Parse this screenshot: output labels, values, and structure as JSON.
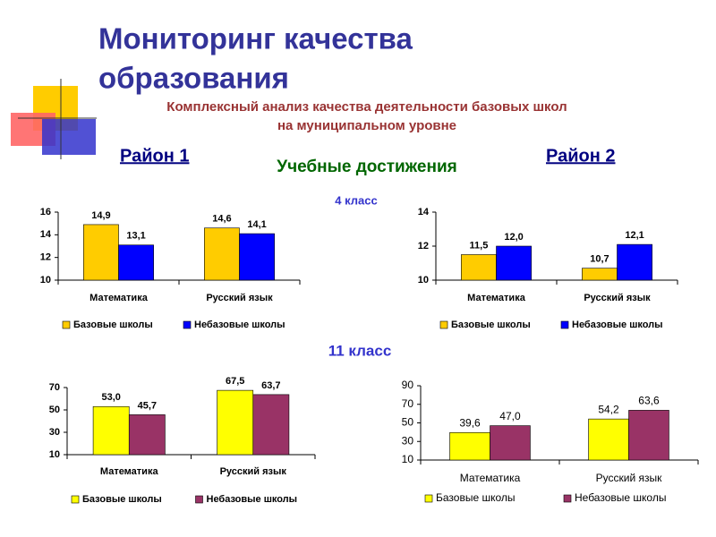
{
  "title": [
    "Мониторинг качества",
    "образования"
  ],
  "subtitle": [
    "Комплексный анализ качества деятельности базовых школ",
    "на муниципальном уровне"
  ],
  "district_1": "Район 1",
  "district_2": "Район 2",
  "heading": "Учебные достижения",
  "grade_4": "4 класс",
  "grade_11": "11 класс",
  "chart_data": [
    {
      "type": "bar",
      "categories": [
        "Математика",
        "Русский язык"
      ],
      "ylim": [
        10,
        16
      ],
      "yticks": [
        10,
        12,
        14,
        16
      ],
      "grid": false,
      "legend": "bottom",
      "series": [
        {
          "name": "Базовые школы",
          "color": "#ffcc00",
          "values": [
            14.9,
            14.6
          ],
          "value_labels": [
            "14,9",
            "14,6"
          ]
        },
        {
          "name": "Небазовые школы",
          "color": "#0000ff",
          "values": [
            13.1,
            14.1
          ],
          "value_labels": [
            "13,1",
            "14,1"
          ]
        }
      ]
    },
    {
      "type": "bar",
      "categories": [
        "Математика",
        "Русский язык"
      ],
      "ylim": [
        10,
        14
      ],
      "yticks": [
        10,
        12,
        14
      ],
      "grid": false,
      "legend": "bottom",
      "series": [
        {
          "name": "Базовые школы",
          "color": "#ffcc00",
          "values": [
            11.5,
            10.7
          ],
          "value_labels": [
            "11,5",
            "10,7"
          ]
        },
        {
          "name": "Небазовые школы",
          "color": "#0000ff",
          "values": [
            12.0,
            12.1
          ],
          "value_labels": [
            "12,0",
            "12,1"
          ]
        }
      ]
    },
    {
      "type": "bar",
      "categories": [
        "Математика",
        "Русский язык"
      ],
      "ylim": [
        10,
        70
      ],
      "yticks": [
        10,
        30,
        50,
        70
      ],
      "grid": false,
      "legend": "bottom",
      "series": [
        {
          "name": "Базовые школы",
          "color": "#ffff00",
          "values": [
            53.0,
            67.5
          ],
          "value_labels": [
            "53,0",
            "67,5"
          ]
        },
        {
          "name": "Небазовые школы",
          "color": "#993366",
          "values": [
            45.7,
            63.7
          ],
          "value_labels": [
            "45,7",
            "63,7"
          ]
        }
      ]
    },
    {
      "type": "bar",
      "categories": [
        "Математика",
        "Русский язык"
      ],
      "ylim": [
        10,
        90
      ],
      "yticks": [
        10,
        30,
        50,
        70,
        90
      ],
      "grid": false,
      "legend": "bottom",
      "series": [
        {
          "name": "Базовые школы",
          "color": "#ffff00",
          "values": [
            39.6,
            54.2
          ],
          "value_labels": [
            "39,6",
            "54,2"
          ]
        },
        {
          "name": "Небазовые школы",
          "color": "#993366",
          "values": [
            47.0,
            63.6
          ],
          "value_labels": [
            "47,0",
            "63,6"
          ]
        }
      ]
    }
  ]
}
